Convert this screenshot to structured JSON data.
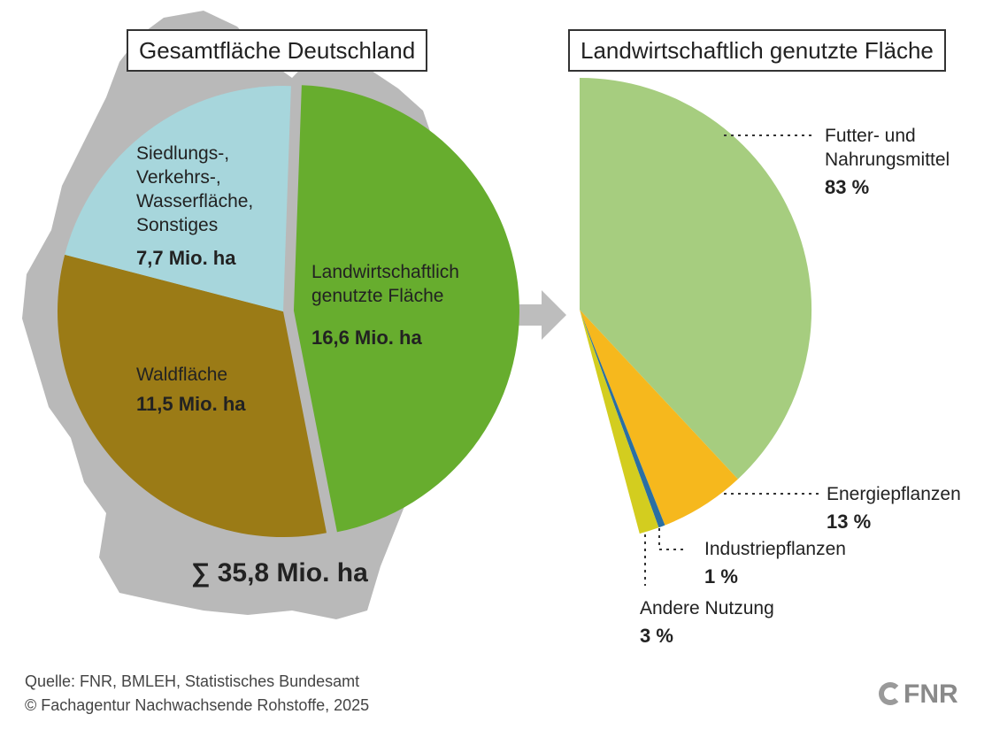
{
  "left_title": "Gesamtfläche Deutschland",
  "right_title": "Landwirtschaftlich genutzte Fläche",
  "chart_data": [
    {
      "type": "pie",
      "title": "Gesamtfläche Deutschland",
      "unit": "Mio. ha",
      "total_label": "∑ 35,8 Mio. ha",
      "slices": [
        {
          "name_lines": [
            "Landwirtschaftlich",
            "genutzte Fläche"
          ],
          "value": 16.6,
          "value_label": "16,6 Mio. ha",
          "color": "#67ad2e"
        },
        {
          "name_lines": [
            "Waldfläche"
          ],
          "value": 11.5,
          "value_label": "11,5 Mio. ha",
          "color": "#9b7b16"
        },
        {
          "name_lines": [
            "Siedlungs-,",
            "Verkehrs-,",
            "Wasserfläche,",
            "Sonstiges"
          ],
          "value": 7.7,
          "value_label": "7,7 Mio. ha",
          "color": "#a7d6dc"
        }
      ]
    },
    {
      "type": "pie",
      "title": "Landwirtschaftlich genutzte Fläche",
      "unit": "%",
      "slices": [
        {
          "name_lines": [
            "Futter- und",
            "Nahrungsmittel"
          ],
          "value": 83,
          "value_label": "83 %",
          "color": "#a6cd7f"
        },
        {
          "name_lines": [
            "Energiepflanzen"
          ],
          "value": 13,
          "value_label": "13 %",
          "color": "#f6b81d"
        },
        {
          "name_lines": [
            "Industriepflanzen"
          ],
          "value": 1,
          "value_label": "1 %",
          "color": "#2a6fa3"
        },
        {
          "name_lines": [
            "Andere Nutzung"
          ],
          "value": 3,
          "value_label": "3 %",
          "color": "#d3cd1f"
        }
      ]
    }
  ],
  "source_line": "Quelle: FNR, BMLEH, Statistisches Bundesamt",
  "copyright_line": "© Fachagentur Nachwachsende Rohstoffe, 2025",
  "logo_text": "FNR"
}
